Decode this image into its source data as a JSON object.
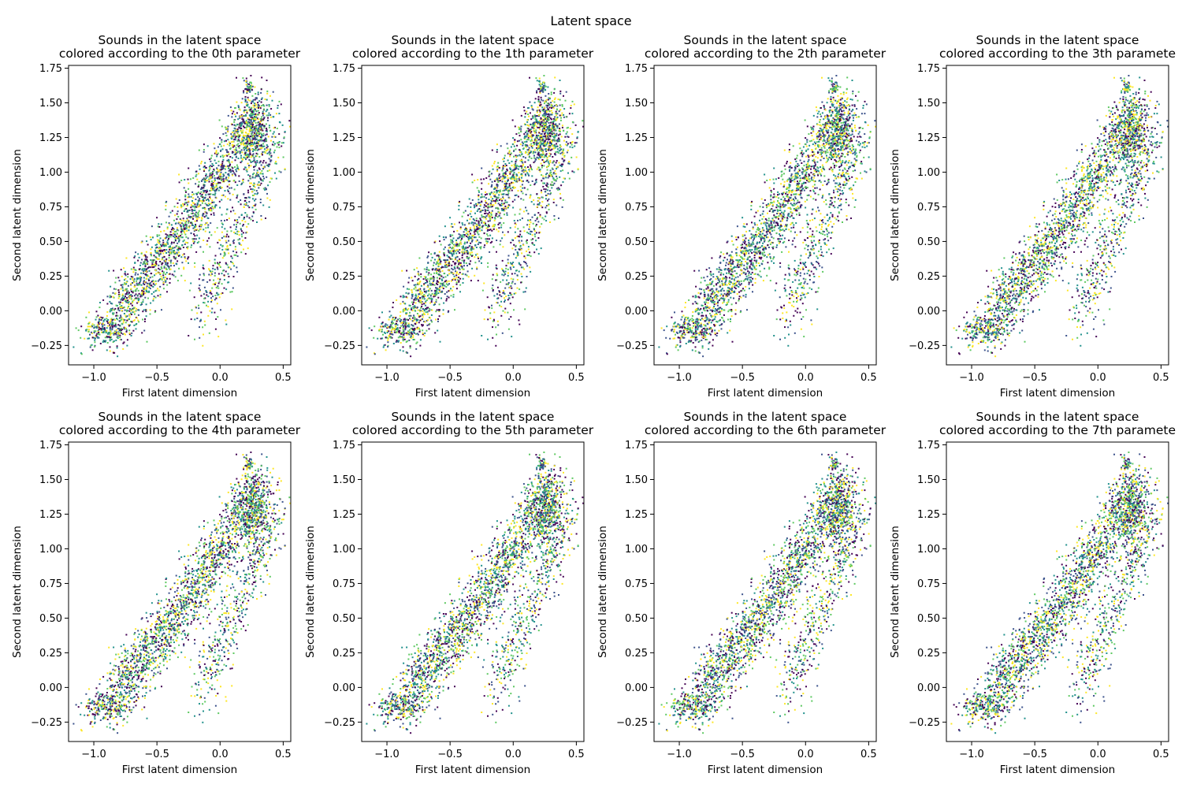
{
  "figure": {
    "suptitle": "Latent space"
  },
  "chart_data": [
    {
      "type": "scatter",
      "title_line1": "Sounds in the latent space",
      "title_line2": "colored according to the 0th parameter",
      "xlabel": "First latent dimension",
      "ylabel": "Second latent dimension",
      "xlim": [
        -1.2,
        0.56
      ],
      "ylim": [
        -0.39,
        1.77
      ],
      "xticks": [
        -1.0,
        -0.5,
        0.0,
        0.5
      ],
      "yticks": [
        -0.25,
        0.0,
        0.25,
        0.5,
        0.75,
        1.0,
        1.25,
        1.5,
        1.75
      ],
      "grid": false,
      "colormap": [
        "#440154",
        "#3b528b",
        "#21918c",
        "#5ec962",
        "#fde725"
      ],
      "seed": 11
    },
    {
      "type": "scatter",
      "title_line1": "Sounds in the latent space",
      "title_line2": "colored according to the 1th parameter",
      "xlabel": "First latent dimension",
      "ylabel": "Second latent dimension",
      "xlim": [
        -1.2,
        0.56
      ],
      "ylim": [
        -0.39,
        1.77
      ],
      "xticks": [
        -1.0,
        -0.5,
        0.0,
        0.5
      ],
      "yticks": [
        -0.25,
        0.0,
        0.25,
        0.5,
        0.75,
        1.0,
        1.25,
        1.5,
        1.75
      ],
      "grid": false,
      "colormap": [
        "#440154",
        "#3b528b",
        "#21918c",
        "#5ec962",
        "#fde725"
      ],
      "seed": 23
    },
    {
      "type": "scatter",
      "title_line1": "Sounds in the latent space",
      "title_line2": "colored according to the 2th parameter",
      "xlabel": "First latent dimension",
      "ylabel": "Second latent dimension",
      "xlim": [
        -1.2,
        0.56
      ],
      "ylim": [
        -0.39,
        1.77
      ],
      "xticks": [
        -1.0,
        -0.5,
        0.0,
        0.5
      ],
      "yticks": [
        -0.25,
        0.0,
        0.25,
        0.5,
        0.75,
        1.0,
        1.25,
        1.5,
        1.75
      ],
      "grid": false,
      "colormap": [
        "#440154",
        "#3b528b",
        "#21918c",
        "#5ec962",
        "#fde725"
      ],
      "seed": 37
    },
    {
      "type": "scatter",
      "title_line1": "Sounds in the latent space",
      "title_line2": "colored according to the 3th paramete",
      "xlabel": "First latent dimension",
      "ylabel": "Second latent dimension",
      "xlim": [
        -1.2,
        0.56
      ],
      "ylim": [
        -0.39,
        1.77
      ],
      "xticks": [
        -1.0,
        -0.5,
        0.0,
        0.5
      ],
      "yticks": [
        -0.25,
        0.0,
        0.25,
        0.5,
        0.75,
        1.0,
        1.25,
        1.5,
        1.75
      ],
      "grid": false,
      "colormap": [
        "#440154",
        "#3b528b",
        "#21918c",
        "#5ec962",
        "#fde725"
      ],
      "seed": 41
    },
    {
      "type": "scatter",
      "title_line1": "Sounds in the latent space",
      "title_line2": "colored according to the 4th parameter",
      "xlabel": "First latent dimension",
      "ylabel": "Second latent dimension",
      "xlim": [
        -1.2,
        0.56
      ],
      "ylim": [
        -0.39,
        1.77
      ],
      "xticks": [
        -1.0,
        -0.5,
        0.0,
        0.5
      ],
      "yticks": [
        -0.25,
        0.0,
        0.25,
        0.5,
        0.75,
        1.0,
        1.25,
        1.5,
        1.75
      ],
      "grid": false,
      "colormap": [
        "#440154",
        "#3b528b",
        "#21918c",
        "#5ec962",
        "#fde725"
      ],
      "seed": 53
    },
    {
      "type": "scatter",
      "title_line1": "Sounds in the latent space",
      "title_line2": "colored according to the 5th parameter",
      "xlabel": "First latent dimension",
      "ylabel": "Second latent dimension",
      "xlim": [
        -1.2,
        0.56
      ],
      "ylim": [
        -0.39,
        1.77
      ],
      "xticks": [
        -1.0,
        -0.5,
        0.0,
        0.5
      ],
      "yticks": [
        -0.25,
        0.0,
        0.25,
        0.5,
        0.75,
        1.0,
        1.25,
        1.5,
        1.75
      ],
      "grid": false,
      "colormap": [
        "#440154",
        "#3b528b",
        "#21918c",
        "#5ec962",
        "#fde725"
      ],
      "seed": 67
    },
    {
      "type": "scatter",
      "title_line1": "Sounds in the latent space",
      "title_line2": "colored according to the 6th parameter",
      "xlabel": "First latent dimension",
      "ylabel": "Second latent dimension",
      "xlim": [
        -1.2,
        0.56
      ],
      "ylim": [
        -0.39,
        1.77
      ],
      "xticks": [
        -1.0,
        -0.5,
        0.0,
        0.5
      ],
      "yticks": [
        -0.25,
        0.0,
        0.25,
        0.5,
        0.75,
        1.0,
        1.25,
        1.5,
        1.75
      ],
      "grid": false,
      "colormap": [
        "#440154",
        "#3b528b",
        "#21918c",
        "#5ec962",
        "#fde725"
      ],
      "seed": 71
    },
    {
      "type": "scatter",
      "title_line1": "Sounds in the latent space",
      "title_line2": "colored according to the 7th paramete",
      "xlabel": "First latent dimension",
      "ylabel": "Second latent dimension",
      "xlim": [
        -1.2,
        0.56
      ],
      "ylim": [
        -0.39,
        1.77
      ],
      "xticks": [
        -1.0,
        -0.5,
        0.0,
        0.5
      ],
      "yticks": [
        -0.25,
        0.0,
        0.25,
        0.5,
        0.75,
        1.0,
        1.25,
        1.5,
        1.75
      ],
      "grid": false,
      "colormap": [
        "#440154",
        "#3b528b",
        "#21918c",
        "#5ec962",
        "#fde725"
      ],
      "seed": 83
    }
  ]
}
